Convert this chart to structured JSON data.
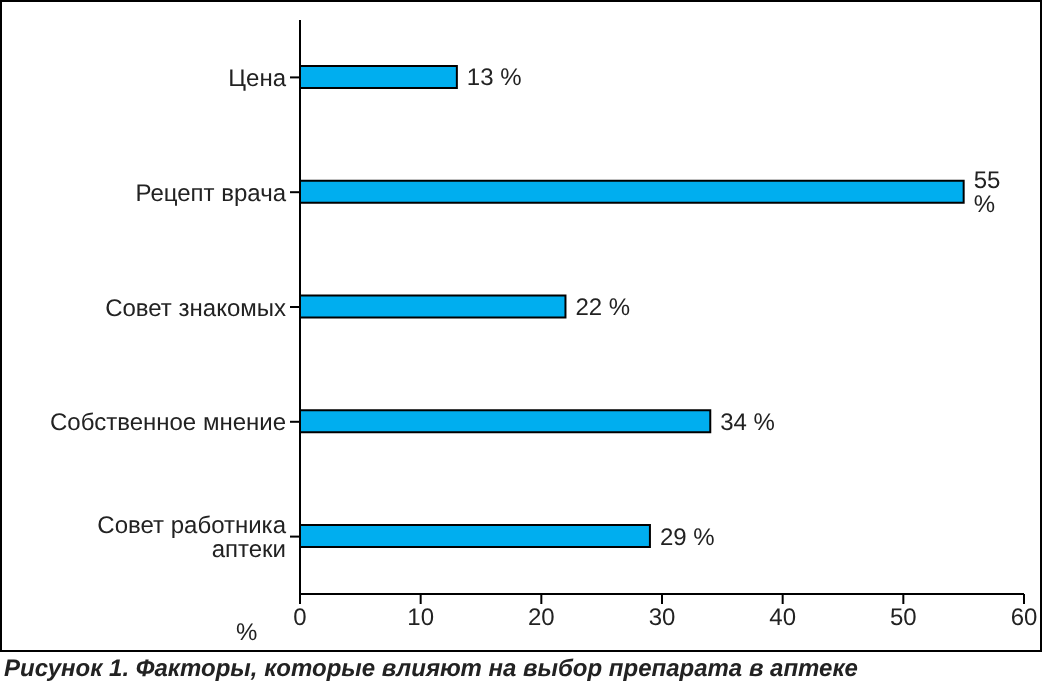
{
  "chart_data": {
    "type": "bar",
    "orientation": "horizontal",
    "title": "Рисунок 1. Факторы, которые влияют на выбор препарата в аптеке",
    "xlabel": "%",
    "categories": [
      "Цена",
      "Рецепт врача",
      "Совет знакомых",
      "Собственное мнение",
      "Совет работника аптеки"
    ],
    "values": [
      13,
      55,
      22,
      34,
      29
    ],
    "value_labels": [
      "13 %",
      "55 %",
      "22 %",
      "34 %",
      "29 %"
    ],
    "color": "#00aeef",
    "xlim": [
      0,
      60
    ],
    "xticks": [
      0,
      10,
      20,
      30,
      40,
      50,
      60
    ],
    "grid": false,
    "legend": false
  }
}
